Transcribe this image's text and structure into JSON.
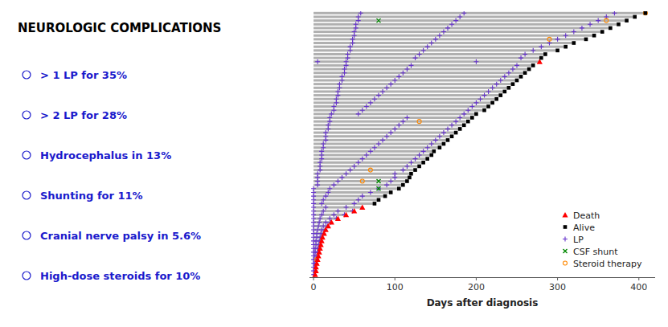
{
  "chart_data": {
    "type": "bar",
    "orientation": "horizontal",
    "title": "NEUROLOGIC COMPLICATIONS",
    "annotations": [
      {
        "text": "> 1 LP for 35%",
        "color": "#1a1acc"
      },
      {
        "text": "> 2 LP for 28%",
        "color": "#1a1acc"
      },
      {
        "text": "Hydrocephalus in 13%",
        "color": "#1a1acc"
      },
      {
        "text": "Shunting for 11%",
        "color": "#1a1acc"
      },
      {
        "text": "Cranial nerve palsy in 5.6%",
        "color": "#1a1acc"
      },
      {
        "text": "High-dose steroids for 10%",
        "color": "#1a1acc"
      }
    ],
    "x_label": "Days after diagnosis",
    "xlim": [
      -5,
      420
    ],
    "xticks": [
      0,
      100,
      200,
      300,
      400
    ],
    "tick_labels": "x",
    "grid": false,
    "legend": "lower right",
    "series": [
      {
        "type": "bar",
        "color": "#b0b0b0",
        "values": [
          408,
          395,
          385,
          375,
          365,
          355,
          345,
          335,
          320,
          310,
          300,
          285,
          280,
          278,
          270,
          265,
          260,
          255,
          250,
          245,
          240,
          235,
          230,
          225,
          220,
          215,
          210,
          200,
          195,
          190,
          185,
          180,
          175,
          170,
          165,
          160,
          155,
          148,
          145,
          140,
          135,
          130,
          125,
          120,
          118,
          115,
          110,
          105,
          95,
          88,
          80,
          75,
          60,
          50,
          40,
          30,
          22,
          18,
          15,
          13,
          11,
          10,
          9,
          8,
          7,
          6,
          5,
          4,
          3,
          3,
          2
        ]
      },
      {
        "name": "Death",
        "type": "scatter",
        "marker": "triangle",
        "color": "#ff0000",
        "values": [
          null,
          null,
          null,
          null,
          null,
          null,
          null,
          null,
          null,
          null,
          null,
          null,
          null,
          278,
          null,
          null,
          null,
          null,
          null,
          null,
          null,
          null,
          null,
          null,
          null,
          null,
          null,
          null,
          null,
          null,
          null,
          null,
          null,
          null,
          null,
          null,
          null,
          null,
          null,
          null,
          null,
          null,
          null,
          null,
          null,
          null,
          null,
          null,
          null,
          null,
          null,
          null,
          60,
          50,
          40,
          30,
          22,
          18,
          15,
          13,
          11,
          10,
          9,
          8,
          7,
          6,
          5,
          4,
          3,
          3,
          2
        ]
      },
      {
        "name": "Alive",
        "type": "scatter",
        "marker": "square",
        "color": "#000000",
        "values": [
          408,
          395,
          385,
          375,
          365,
          355,
          345,
          335,
          320,
          310,
          300,
          285,
          280,
          null,
          270,
          265,
          260,
          255,
          250,
          245,
          240,
          235,
          230,
          225,
          220,
          215,
          210,
          200,
          195,
          190,
          185,
          180,
          175,
          170,
          165,
          160,
          155,
          148,
          145,
          140,
          135,
          130,
          125,
          120,
          118,
          115,
          110,
          105,
          95,
          88,
          80,
          75,
          null,
          null,
          null,
          null,
          null,
          null,
          null,
          null,
          null,
          null,
          null,
          null,
          null,
          null,
          null,
          null,
          null,
          null,
          null
        ]
      },
      {
        "name": "LP",
        "type": "scatter",
        "marker": "plus",
        "color": "#6633cc",
        "values": [
          [
            58,
            185,
            370
          ],
          [
            55,
            180,
            360
          ],
          [
            55,
            175,
            350
          ],
          [
            52,
            170,
            340
          ],
          [
            52,
            165,
            330
          ],
          [
            50,
            160,
            320
          ],
          [
            50,
            155,
            310
          ],
          [
            48,
            150,
            300
          ],
          [
            48,
            145,
            290
          ],
          [
            45,
            140,
            280
          ],
          [
            45,
            135,
            270
          ],
          [
            42,
            130,
            260
          ],
          [
            42,
            125,
            255
          ],
          [
            5,
            40,
            200
          ],
          [
            40,
            120,
            250
          ],
          [
            38,
            115,
            245
          ],
          [
            38,
            110,
            240
          ],
          [
            35,
            105,
            235
          ],
          [
            35,
            100,
            230
          ],
          [
            32,
            95,
            225
          ],
          [
            32,
            90,
            220
          ],
          [
            30,
            85,
            215
          ],
          [
            30,
            80,
            210
          ],
          [
            28,
            75,
            205
          ],
          [
            28,
            70,
            200
          ],
          [
            25,
            65,
            195
          ],
          [
            25,
            60,
            190
          ],
          [
            22,
            55,
            185
          ],
          [
            20,
            115,
            180
          ],
          [
            20,
            110,
            175
          ],
          [
            18,
            105,
            170
          ],
          [
            18,
            100,
            165
          ],
          [
            15,
            95,
            160
          ],
          [
            15,
            90,
            155
          ],
          [
            15,
            85,
            150
          ],
          [
            12,
            80,
            145
          ],
          [
            12,
            75,
            140
          ],
          [
            10,
            70,
            135
          ],
          [
            10,
            65,
            130
          ],
          [
            10,
            60,
            125
          ],
          [
            8,
            55,
            120
          ],
          [
            8,
            50,
            115
          ],
          [
            8,
            45,
            110
          ],
          [
            5,
            40,
            100
          ],
          [
            5,
            35,
            100
          ],
          [
            5,
            30,
            95
          ],
          [
            5,
            25,
            90
          ],
          [
            0,
            20,
            80
          ],
          [
            0,
            18,
            70
          ],
          [
            0,
            15,
            60
          ],
          [
            0,
            12,
            55
          ],
          [
            0,
            10,
            50
          ],
          [
            0,
            15,
            40
          ],
          [
            0,
            12,
            30,
            48
          ],
          [
            0,
            10,
            25,
            38
          ],
          [
            0,
            8,
            20,
            28
          ],
          [
            0,
            7,
            15,
            21
          ],
          [
            0,
            6,
            12,
            17
          ],
          [
            0,
            5,
            10,
            14
          ],
          [
            0,
            4,
            9,
            12
          ],
          [
            0,
            4,
            8,
            10
          ],
          [
            0,
            3,
            7,
            9
          ],
          [
            0,
            3,
            6,
            8
          ],
          [
            0,
            2,
            5,
            7
          ],
          [
            0,
            2,
            5,
            6
          ],
          [
            0,
            1,
            3,
            5
          ],
          [
            0,
            2,
            4
          ],
          [
            0,
            1,
            3
          ],
          [
            0,
            1,
            2
          ],
          [
            0,
            2
          ],
          [
            0,
            1
          ]
        ]
      },
      {
        "name": "CSF shunt",
        "type": "scatter",
        "marker": "x",
        "color": "#008800",
        "values": [
          [],
          [],
          [
            80
          ],
          [],
          [],
          [],
          [],
          [],
          [],
          [],
          [],
          [],
          [],
          [],
          [],
          [],
          [],
          [],
          [],
          [],
          [],
          [],
          [],
          [],
          [],
          [],
          [],
          [],
          [],
          [],
          [],
          [],
          [],
          [],
          [],
          [],
          [],
          [],
          [],
          [],
          [],
          [],
          [],
          [],
          [],
          [
            80
          ],
          [],
          [
            80
          ],
          [],
          [],
          [],
          [],
          [],
          [],
          [],
          [],
          [],
          [],
          [],
          [],
          [],
          [],
          [],
          [],
          [],
          [],
          [],
          [],
          [],
          [],
          []
        ]
      },
      {
        "name": "Steroid therapy",
        "type": "scatter",
        "marker": "circle",
        "color": "#ff8800",
        "values": [
          [
            408
          ],
          [],
          [
            360
          ],
          [],
          [],
          [],
          [],
          [
            290
          ],
          [],
          [],
          [],
          [],
          [],
          [],
          [],
          [],
          [],
          [],
          [],
          [],
          [],
          [],
          [],
          [],
          [],
          [],
          [],
          [],
          [],
          [
            130
          ],
          [],
          [],
          [],
          [],
          [],
          [],
          [],
          [],
          [],
          [],
          [],
          [],
          [
            70
          ],
          [],
          [],
          [
            60
          ],
          [],
          [],
          [],
          [],
          [],
          [],
          [],
          [],
          [],
          [],
          [],
          [],
          [],
          [],
          [],
          [],
          [],
          [],
          [],
          [],
          [
            4
          ],
          [],
          [],
          [],
          []
        ]
      }
    ]
  }
}
